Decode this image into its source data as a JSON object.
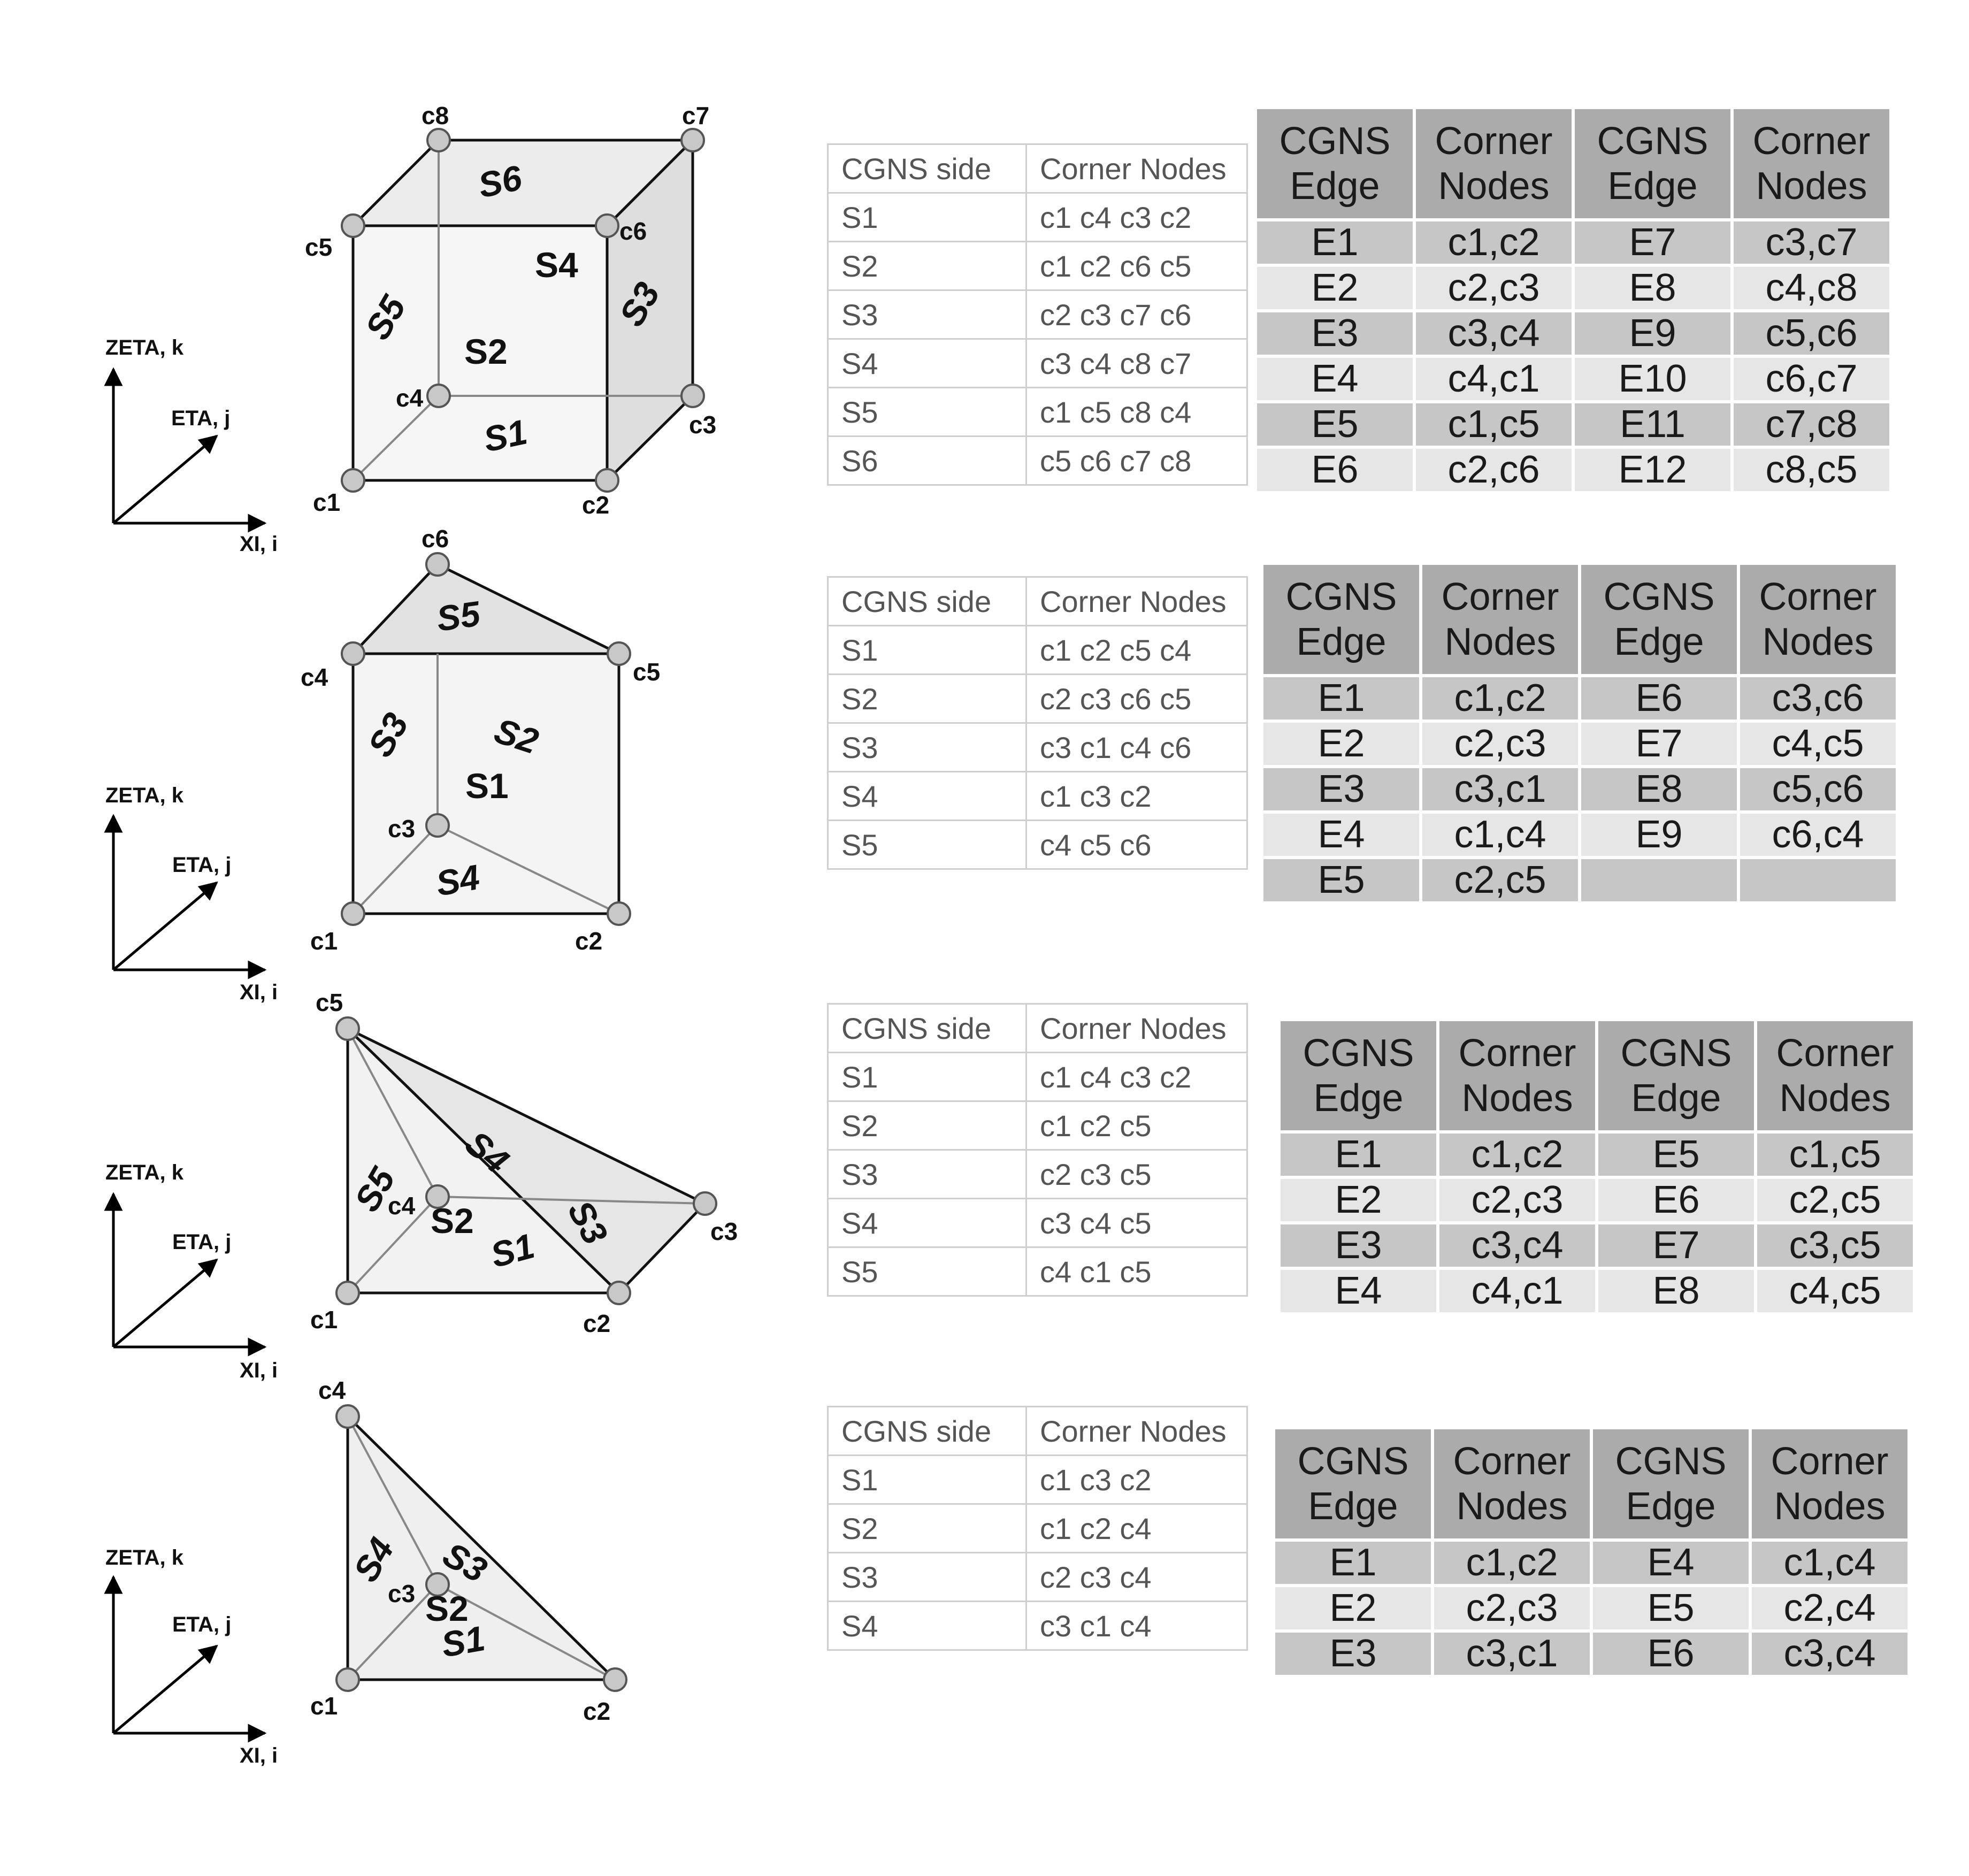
{
  "axes": {
    "zeta": "ZETA, k",
    "eta": "ETA, j",
    "xi": "XI, i"
  },
  "hexahedron": {
    "corners": [
      "c1",
      "c2",
      "c3",
      "c4",
      "c5",
      "c6",
      "c7",
      "c8"
    ],
    "sides": [
      "S1",
      "S2",
      "S3",
      "S4",
      "S5",
      "S6"
    ],
    "side_table": {
      "headers": [
        "CGNS side",
        "Corner Nodes"
      ],
      "rows": [
        [
          "S1",
          "c1 c4 c3 c2"
        ],
        [
          "S2",
          "c1 c2 c6 c5"
        ],
        [
          "S3",
          "c2 c3 c7 c6"
        ],
        [
          "S4",
          "c3 c4 c8 c7"
        ],
        [
          "S5",
          "c1 c5 c8 c4"
        ],
        [
          "S6",
          "c5 c6 c7 c8"
        ]
      ]
    },
    "edge_table": {
      "headers": [
        "CGNS Edge",
        "Corner Nodes",
        "CGNS Edge",
        "Corner Nodes"
      ],
      "rows": [
        [
          "E1",
          "c1,c2",
          "E7",
          "c3,c7"
        ],
        [
          "E2",
          "c2,c3",
          "E8",
          "c4,c8"
        ],
        [
          "E3",
          "c3,c4",
          "E9",
          "c5,c6"
        ],
        [
          "E4",
          "c4,c1",
          "E10",
          "c6,c7"
        ],
        [
          "E5",
          "c1,c5",
          "E11",
          "c7,c8"
        ],
        [
          "E6",
          "c2,c6",
          "E12",
          "c8,c5"
        ]
      ]
    }
  },
  "prism": {
    "corners": [
      "c1",
      "c2",
      "c3",
      "c4",
      "c5",
      "c6"
    ],
    "sides": [
      "S1",
      "S2",
      "S3",
      "S4",
      "S5"
    ],
    "side_table": {
      "headers": [
        "CGNS side",
        "Corner Nodes"
      ],
      "rows": [
        [
          "S1",
          "c1 c2 c5 c4"
        ],
        [
          "S2",
          "c2 c3 c6 c5"
        ],
        [
          "S3",
          "c3 c1 c4 c6"
        ],
        [
          "S4",
          "c1 c3 c2"
        ],
        [
          "S5",
          "c4 c5 c6"
        ]
      ]
    },
    "edge_table": {
      "headers": [
        "CGNS Edge",
        "Corner Nodes",
        "CGNS Edge",
        "Corner Nodes"
      ],
      "rows": [
        [
          "E1",
          "c1,c2",
          "E6",
          "c3,c6"
        ],
        [
          "E2",
          "c2,c3",
          "E7",
          "c4,c5"
        ],
        [
          "E3",
          "c3,c1",
          "E8",
          "c5,c6"
        ],
        [
          "E4",
          "c1,c4",
          "E9",
          "c6,c4"
        ],
        [
          "E5",
          "c2,c5",
          "",
          ""
        ]
      ]
    }
  },
  "pyramid": {
    "corners": [
      "c1",
      "c2",
      "c3",
      "c4",
      "c5"
    ],
    "sides": [
      "S1",
      "S2",
      "S3",
      "S4",
      "S5"
    ],
    "side_table": {
      "headers": [
        "CGNS side",
        "Corner Nodes"
      ],
      "rows": [
        [
          "S1",
          "c1 c4 c3 c2"
        ],
        [
          "S2",
          "c1 c2 c5"
        ],
        [
          "S3",
          "c2 c3 c5"
        ],
        [
          "S4",
          "c3 c4 c5"
        ],
        [
          "S5",
          "c4 c1 c5"
        ]
      ]
    },
    "edge_table": {
      "headers": [
        "CGNS Edge",
        "Corner Nodes",
        "CGNS Edge",
        "Corner Nodes"
      ],
      "rows": [
        [
          "E1",
          "c1,c2",
          "E5",
          "c1,c5"
        ],
        [
          "E2",
          "c2,c3",
          "E6",
          "c2,c5"
        ],
        [
          "E3",
          "c3,c4",
          "E7",
          "c3,c5"
        ],
        [
          "E4",
          "c4,c1",
          "E8",
          "c4,c5"
        ]
      ]
    }
  },
  "tetrahedron": {
    "corners": [
      "c1",
      "c2",
      "c3",
      "c4"
    ],
    "sides": [
      "S1",
      "S2",
      "S3",
      "S4"
    ],
    "side_table": {
      "headers": [
        "CGNS side",
        "Corner Nodes"
      ],
      "rows": [
        [
          "S1",
          "c1 c3 c2"
        ],
        [
          "S2",
          "c1 c2 c4"
        ],
        [
          "S3",
          "c2 c3 c4"
        ],
        [
          "S4",
          "c3 c1 c4"
        ]
      ]
    },
    "edge_table": {
      "headers": [
        "CGNS Edge",
        "Corner Nodes",
        "CGNS Edge",
        "Corner Nodes"
      ],
      "rows": [
        [
          "E1",
          "c1,c2",
          "E4",
          "c1,c4"
        ],
        [
          "E2",
          "c2,c3",
          "E5",
          "c2,c4"
        ],
        [
          "E3",
          "c3,c1",
          "E6",
          "c3,c4"
        ]
      ]
    }
  }
}
